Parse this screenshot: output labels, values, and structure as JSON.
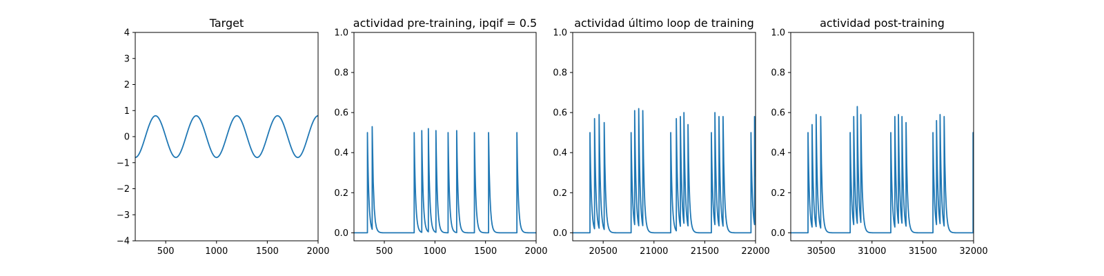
{
  "colors": {
    "series": "#1f77b4",
    "axes": "#000000",
    "background": "#ffffff"
  },
  "chart_data": [
    {
      "type": "line",
      "title": "Target",
      "xlim": [
        200,
        2000
      ],
      "ylim": [
        -4,
        4
      ],
      "xticks": [
        500,
        1000,
        1500,
        2000
      ],
      "yticks": [
        -4,
        -3,
        -2,
        -1,
        0,
        1,
        2,
        3,
        4
      ],
      "xtick_labels": [
        "500",
        "1000",
        "1500",
        "2000"
      ],
      "ytick_labels": [
        "−4",
        "−3",
        "−2",
        "−1",
        "0",
        "1",
        "2",
        "3",
        "4"
      ],
      "series": [
        {
          "kind": "sine",
          "amplitude": 0.8,
          "period": 400,
          "x_start": 200,
          "x_end": 2000,
          "y_at_start": -0.8
        }
      ]
    },
    {
      "type": "line",
      "title": "actividad pre-training, ipqif = 0.5",
      "xlim": [
        200,
        2000
      ],
      "ylim": [
        -0.04,
        1.0
      ],
      "xticks": [
        500,
        1000,
        1500,
        2000
      ],
      "yticks": [
        0.0,
        0.2,
        0.4,
        0.6,
        0.8,
        1.0
      ],
      "xtick_labels": [
        "500",
        "1000",
        "1500",
        "2000"
      ],
      "ytick_labels": [
        "0.0",
        "0.2",
        "0.4",
        "0.6",
        "0.8",
        "1.0"
      ],
      "series": [
        {
          "kind": "spike_train",
          "tau": 14,
          "spikes": [
            {
              "x": 333,
              "y": 0.5
            },
            {
              "x": 380,
              "y": 0.53
            },
            {
              "x": 795,
              "y": 0.5
            },
            {
              "x": 870,
              "y": 0.51
            },
            {
              "x": 935,
              "y": 0.52
            },
            {
              "x": 1010,
              "y": 0.51
            },
            {
              "x": 1130,
              "y": 0.5
            },
            {
              "x": 1215,
              "y": 0.51
            },
            {
              "x": 1390,
              "y": 0.5
            },
            {
              "x": 1530,
              "y": 0.5
            },
            {
              "x": 1810,
              "y": 0.5
            }
          ]
        }
      ]
    },
    {
      "type": "line",
      "title": "actividad último loop de training",
      "xlim": [
        20200,
        22000
      ],
      "ylim": [
        -0.04,
        1.0
      ],
      "xticks": [
        20500,
        21000,
        21500,
        22000
      ],
      "yticks": [
        0.0,
        0.2,
        0.4,
        0.6,
        0.8,
        1.0
      ],
      "xtick_labels": [
        "20500",
        "21000",
        "21500",
        "22000"
      ],
      "ytick_labels": [
        "0.0",
        "0.2",
        "0.4",
        "0.6",
        "0.8",
        "1.0"
      ],
      "series": [
        {
          "kind": "spike_train",
          "tau": 14,
          "spikes": [
            {
              "x": 20370,
              "y": 0.5
            },
            {
              "x": 20415,
              "y": 0.57
            },
            {
              "x": 20460,
              "y": 0.59
            },
            {
              "x": 20510,
              "y": 0.55
            },
            {
              "x": 20775,
              "y": 0.5
            },
            {
              "x": 20810,
              "y": 0.61
            },
            {
              "x": 20850,
              "y": 0.62
            },
            {
              "x": 20890,
              "y": 0.61
            },
            {
              "x": 21165,
              "y": 0.5
            },
            {
              "x": 21220,
              "y": 0.57
            },
            {
              "x": 21260,
              "y": 0.58
            },
            {
              "x": 21295,
              "y": 0.6
            },
            {
              "x": 21335,
              "y": 0.54
            },
            {
              "x": 21565,
              "y": 0.5
            },
            {
              "x": 21600,
              "y": 0.6
            },
            {
              "x": 21640,
              "y": 0.58
            },
            {
              "x": 21680,
              "y": 0.58
            },
            {
              "x": 21955,
              "y": 0.5
            },
            {
              "x": 21990,
              "y": 0.58
            }
          ]
        }
      ]
    },
    {
      "type": "line",
      "title": "actividad post-training",
      "xlim": [
        30200,
        32000
      ],
      "ylim": [
        -0.04,
        1.0
      ],
      "xticks": [
        30500,
        31000,
        31500,
        32000
      ],
      "yticks": [
        0.0,
        0.2,
        0.4,
        0.6,
        0.8,
        1.0
      ],
      "xtick_labels": [
        "30500",
        "31000",
        "31500",
        "32000"
      ],
      "ytick_labels": [
        "0.0",
        "0.2",
        "0.4",
        "0.6",
        "0.8",
        "1.0"
      ],
      "series": [
        {
          "kind": "spike_train",
          "tau": 14,
          "spikes": [
            {
              "x": 30370,
              "y": 0.5
            },
            {
              "x": 30410,
              "y": 0.54
            },
            {
              "x": 30450,
              "y": 0.59
            },
            {
              "x": 30495,
              "y": 0.58
            },
            {
              "x": 30785,
              "y": 0.5
            },
            {
              "x": 30820,
              "y": 0.58
            },
            {
              "x": 30855,
              "y": 0.63
            },
            {
              "x": 30890,
              "y": 0.59
            },
            {
              "x": 31185,
              "y": 0.5
            },
            {
              "x": 31225,
              "y": 0.58
            },
            {
              "x": 31260,
              "y": 0.59
            },
            {
              "x": 31295,
              "y": 0.58
            },
            {
              "x": 31335,
              "y": 0.55
            },
            {
              "x": 31600,
              "y": 0.5
            },
            {
              "x": 31635,
              "y": 0.56
            },
            {
              "x": 31670,
              "y": 0.59
            },
            {
              "x": 31710,
              "y": 0.58
            },
            {
              "x": 31995,
              "y": 0.5
            }
          ]
        }
      ]
    }
  ]
}
